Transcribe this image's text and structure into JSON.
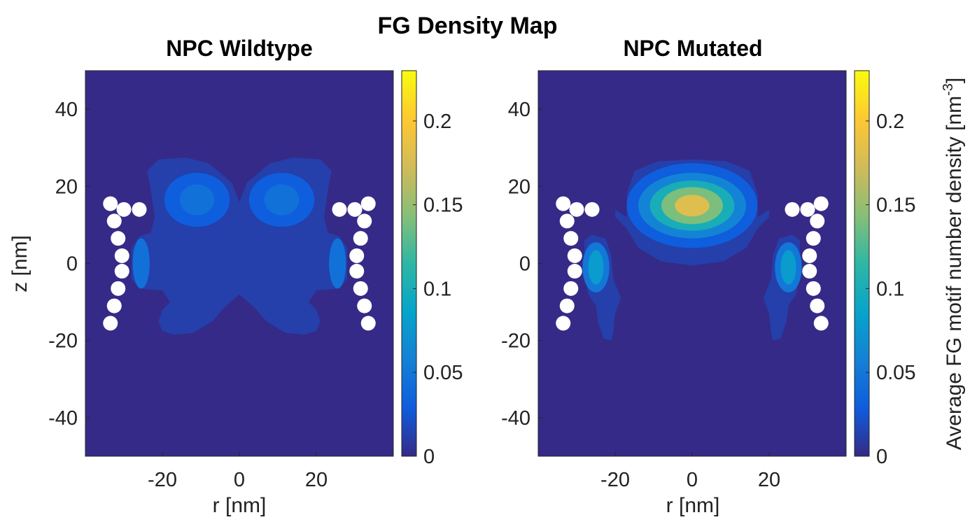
{
  "figure": {
    "title": "FG Density Map"
  },
  "colorbar_label": {
    "main": "Average FG motif number density [nm",
    "sup": "-3",
    "close": "]"
  },
  "colors": {
    "viridis_low": "#352a87",
    "viridis_mid": "#20b2aa",
    "viridis_high": "#f9fb0e",
    "bead": "#ffffff"
  },
  "chart_data": [
    {
      "type": "heatmap",
      "title": "NPC Wildtype",
      "xlabel": "r [nm]",
      "ylabel": "z [nm]",
      "xlim": [
        -40,
        40
      ],
      "ylim": [
        -50,
        50
      ],
      "xticks": [
        -20,
        0,
        20
      ],
      "yticks": [
        40,
        20,
        0,
        -20,
        -40
      ],
      "colormap": "parula",
      "clim": [
        0,
        0.23
      ],
      "cticks": [
        0,
        0.05,
        0.1,
        0.15,
        0.2
      ],
      "grid": false,
      "density_regions": [
        {
          "level": 0.012,
          "shape": "outer-envelope"
        },
        {
          "level": 0.03,
          "center_r": -11,
          "center_z": 16.5,
          "radius_r": 8.5,
          "radius_z": 7
        },
        {
          "level": 0.03,
          "center_r": 11,
          "center_z": 16.5,
          "radius_r": 8.5,
          "radius_z": 7
        },
        {
          "level": 0.045,
          "center_r": -11,
          "center_z": 16.5,
          "radius_r": 4.5,
          "radius_z": 4
        },
        {
          "level": 0.045,
          "center_r": 11,
          "center_z": 16.5,
          "radius_r": 4.5,
          "radius_z": 4
        },
        {
          "level": 0.045,
          "center_r": -25.5,
          "center_z": 0,
          "radius_r": 2.2,
          "radius_z": 6.5
        },
        {
          "level": 0.045,
          "center_r": 25.5,
          "center_z": 0,
          "radius_r": 2.2,
          "radius_z": 6.5
        }
      ],
      "beads": [
        {
          "r": -33.5,
          "z": 15.5
        },
        {
          "r": -30,
          "z": 14
        },
        {
          "r": -26,
          "z": 14
        },
        {
          "r": -32.5,
          "z": 11
        },
        {
          "r": -31.5,
          "z": 6.5
        },
        {
          "r": -30.5,
          "z": 2
        },
        {
          "r": -30.5,
          "z": -2
        },
        {
          "r": -31.5,
          "z": -6.5
        },
        {
          "r": -32.5,
          "z": -11
        },
        {
          "r": -33.5,
          "z": -15.5
        },
        {
          "r": 33.5,
          "z": 15.5
        },
        {
          "r": 30,
          "z": 14
        },
        {
          "r": 26,
          "z": 14
        },
        {
          "r": 32.5,
          "z": 11
        },
        {
          "r": 31.5,
          "z": 6.5
        },
        {
          "r": 30.5,
          "z": 2
        },
        {
          "r": 30.5,
          "z": -2
        },
        {
          "r": 31.5,
          "z": -6.5
        },
        {
          "r": 32.5,
          "z": -11
        },
        {
          "r": 33.5,
          "z": -15.5
        }
      ]
    },
    {
      "type": "heatmap",
      "title": "NPC Mutated",
      "xlabel": "r [nm]",
      "ylabel": "",
      "xlim": [
        -40,
        40
      ],
      "ylim": [
        -50,
        50
      ],
      "xticks": [
        -20,
        0,
        20
      ],
      "yticks": [
        40,
        20,
        0,
        -20,
        -40
      ],
      "colormap": "parula",
      "clim": [
        0,
        0.23
      ],
      "cticks": [
        0,
        0.05,
        0.1,
        0.15,
        0.2
      ],
      "grid": false,
      "density_regions": [
        {
          "level": 0.012,
          "shape": "central-blob"
        },
        {
          "level": 0.012,
          "shape": "side-arm-left"
        },
        {
          "level": 0.012,
          "shape": "side-arm-right"
        },
        {
          "level": 0.03,
          "center_r": 0,
          "center_z": 15,
          "radius_r": 17,
          "radius_z": 11
        },
        {
          "level": 0.06,
          "center_r": 0,
          "center_z": 15,
          "radius_r": 14,
          "radius_z": 8.5
        },
        {
          "level": 0.1,
          "center_r": 0,
          "center_z": 15,
          "radius_r": 11,
          "radius_z": 6.5
        },
        {
          "level": 0.14,
          "center_r": 0,
          "center_z": 15,
          "radius_r": 8,
          "radius_z": 4.8
        },
        {
          "level": 0.18,
          "center_r": 0,
          "center_z": 15,
          "radius_r": 4.5,
          "radius_z": 2.8
        },
        {
          "level": 0.05,
          "center_r": -25,
          "center_z": -1,
          "radius_r": 3.5,
          "radius_z": 6.5
        },
        {
          "level": 0.05,
          "center_r": 25,
          "center_z": -1,
          "radius_r": 3.5,
          "radius_z": 6.5
        },
        {
          "level": 0.08,
          "center_r": -25,
          "center_z": -1,
          "radius_r": 2,
          "radius_z": 4.5
        },
        {
          "level": 0.08,
          "center_r": 25,
          "center_z": -1,
          "radius_r": 2,
          "radius_z": 4.5
        }
      ],
      "beads": [
        {
          "r": -33.5,
          "z": 15.5
        },
        {
          "r": -30,
          "z": 14
        },
        {
          "r": -26,
          "z": 14
        },
        {
          "r": -32.5,
          "z": 11
        },
        {
          "r": -31.5,
          "z": 6.5
        },
        {
          "r": -30.5,
          "z": 2
        },
        {
          "r": -30.5,
          "z": -2
        },
        {
          "r": -31.5,
          "z": -6.5
        },
        {
          "r": -32.5,
          "z": -11
        },
        {
          "r": -33.5,
          "z": -15.5
        },
        {
          "r": 33.5,
          "z": 15.5
        },
        {
          "r": 30,
          "z": 14
        },
        {
          "r": 26,
          "z": 14
        },
        {
          "r": 32.5,
          "z": 11
        },
        {
          "r": 31.5,
          "z": 6.5
        },
        {
          "r": 30.5,
          "z": 2
        },
        {
          "r": 30.5,
          "z": -2
        },
        {
          "r": 31.5,
          "z": -6.5
        },
        {
          "r": 32.5,
          "z": -11
        },
        {
          "r": 33.5,
          "z": -15.5
        }
      ]
    }
  ]
}
